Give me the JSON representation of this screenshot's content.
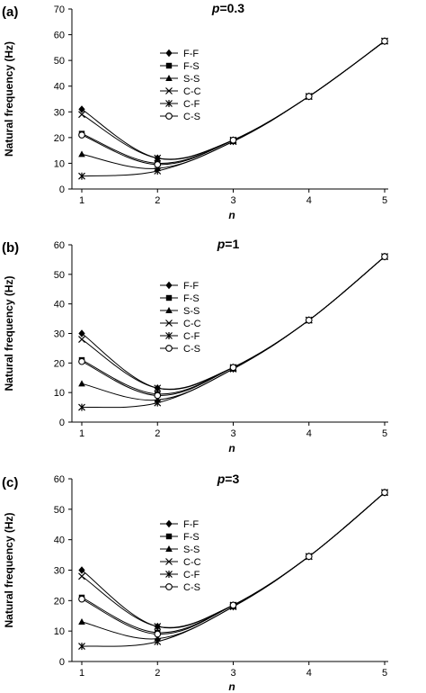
{
  "chart_data": [
    {
      "type": "line",
      "panel_label": "(a)",
      "title": "p=0.3",
      "title_prefix": "p",
      "title_value": "=0.3",
      "xlabel": "n",
      "ylabel": "Natural frequency (Hz)",
      "x": [
        1,
        2,
        3,
        4,
        5
      ],
      "xticks": [
        "1",
        "2",
        "3",
        "4",
        "5"
      ],
      "ylim": [
        0,
        70
      ],
      "yticks": [
        "0",
        "10",
        "20",
        "30",
        "40",
        "50",
        "60",
        "70"
      ],
      "legend_position": "upper-left",
      "series": [
        {
          "name": "F-F",
          "marker": "diamond",
          "values": [
            31,
            12,
            19,
            36,
            57.5
          ]
        },
        {
          "name": "F-S",
          "marker": "square",
          "values": [
            21.5,
            10,
            19,
            36,
            57.5
          ]
        },
        {
          "name": "S-S",
          "marker": "triangle",
          "values": [
            13.5,
            8,
            18.5,
            36,
            57.5
          ]
        },
        {
          "name": "C-C",
          "marker": "x",
          "values": [
            29,
            12,
            19,
            36,
            57.5
          ]
        },
        {
          "name": "C-F",
          "marker": "star",
          "values": [
            5,
            7,
            18.5,
            36,
            57.5
          ]
        },
        {
          "name": "C-S",
          "marker": "circle",
          "values": [
            21,
            9.5,
            19,
            36,
            57.5
          ]
        }
      ]
    },
    {
      "type": "line",
      "panel_label": "(b)",
      "title": "p=1",
      "title_prefix": "p",
      "title_value": "=1",
      "xlabel": "n",
      "ylabel": "Natural frequency (Hz)",
      "x": [
        1,
        2,
        3,
        4,
        5
      ],
      "xticks": [
        "1",
        "2",
        "3",
        "4",
        "5"
      ],
      "ylim": [
        0,
        60
      ],
      "yticks": [
        "0",
        "10",
        "20",
        "30",
        "40",
        "50",
        "60"
      ],
      "legend_position": "upper-left",
      "series": [
        {
          "name": "F-F",
          "marker": "diamond",
          "values": [
            30,
            11.5,
            18.5,
            34.5,
            56
          ]
        },
        {
          "name": "F-S",
          "marker": "square",
          "values": [
            21,
            9.5,
            18.5,
            34.5,
            56
          ]
        },
        {
          "name": "S-S",
          "marker": "triangle",
          "values": [
            13,
            7.5,
            18,
            34.5,
            56
          ]
        },
        {
          "name": "C-C",
          "marker": "x",
          "values": [
            28,
            11.5,
            18.5,
            34.5,
            56
          ]
        },
        {
          "name": "C-F",
          "marker": "star",
          "values": [
            5,
            6.5,
            18,
            34.5,
            56
          ]
        },
        {
          "name": "C-S",
          "marker": "circle",
          "values": [
            20.5,
            9,
            18.5,
            34.5,
            56
          ]
        }
      ]
    },
    {
      "type": "line",
      "panel_label": "(c)",
      "title": "p=3",
      "title_prefix": "p",
      "title_value": "=3",
      "xlabel": "n",
      "ylabel": "Natural frequency (Hz)",
      "x": [
        1,
        2,
        3,
        4,
        5
      ],
      "xticks": [
        "1",
        "2",
        "3",
        "4",
        "5"
      ],
      "ylim": [
        0,
        60
      ],
      "yticks": [
        "0",
        "10",
        "20",
        "30",
        "40",
        "50",
        "60"
      ],
      "legend_position": "upper-left",
      "series": [
        {
          "name": "F-F",
          "marker": "diamond",
          "values": [
            30,
            11.5,
            18.5,
            34.5,
            55.5
          ]
        },
        {
          "name": "F-S",
          "marker": "square",
          "values": [
            21,
            9.5,
            18.5,
            34.5,
            55.5
          ]
        },
        {
          "name": "S-S",
          "marker": "triangle",
          "values": [
            13,
            7.5,
            18,
            34.5,
            55.5
          ]
        },
        {
          "name": "C-C",
          "marker": "x",
          "values": [
            28,
            11.5,
            18.5,
            34.5,
            55.5
          ]
        },
        {
          "name": "C-F",
          "marker": "star",
          "values": [
            5,
            6.5,
            18,
            34.5,
            55.5
          ]
        },
        {
          "name": "C-S",
          "marker": "circle",
          "values": [
            20.5,
            9,
            18.5,
            34.5,
            55.5
          ]
        }
      ]
    }
  ]
}
